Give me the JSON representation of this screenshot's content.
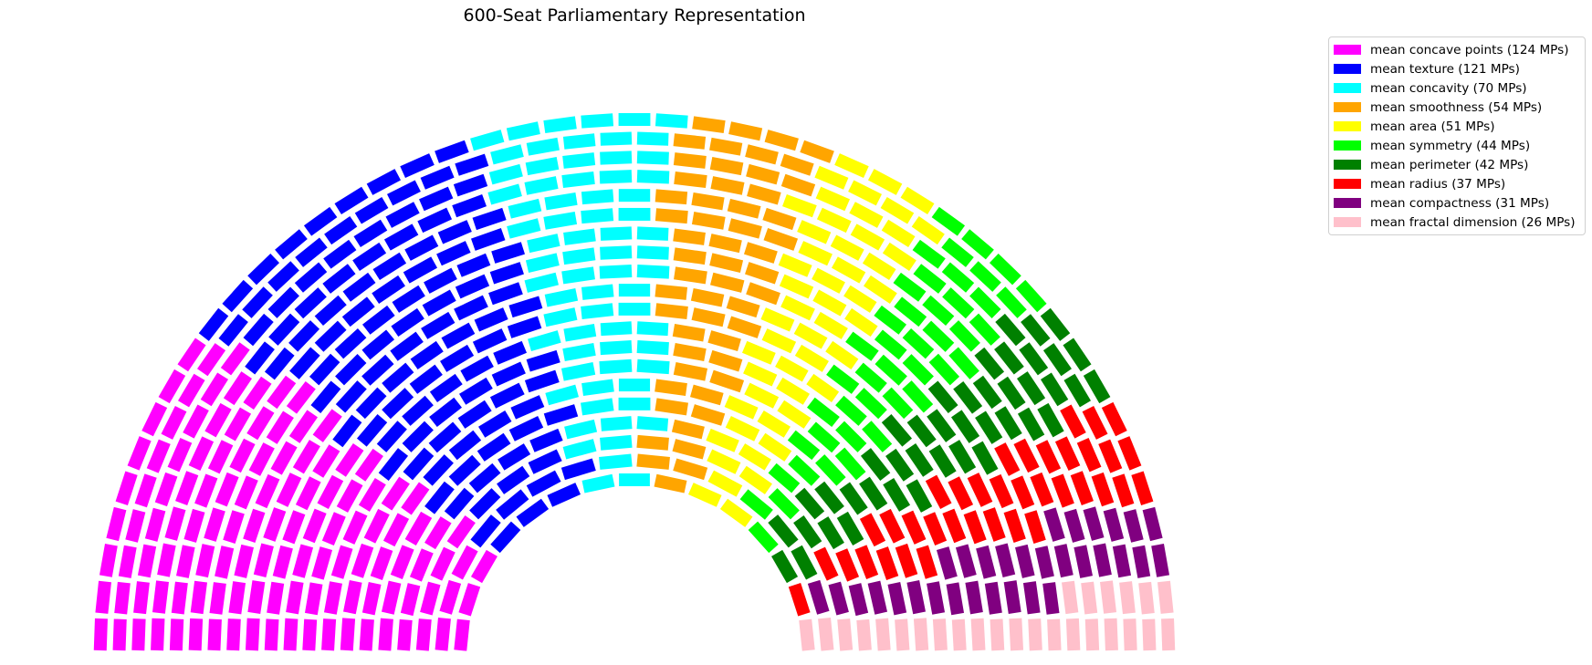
{
  "chart_data": {
    "type": "parliament",
    "title": "600-Seat Parliamentary Representation",
    "total_seats": 600,
    "rows": 20,
    "legend_position": "top-right",
    "series": [
      {
        "name": "mean concave points",
        "seats": 124,
        "color": "#ff00ff",
        "label": "mean concave points (124 MPs)"
      },
      {
        "name": "mean texture",
        "seats": 121,
        "color": "#0000ff",
        "label": "mean texture (121 MPs)"
      },
      {
        "name": "mean concavity",
        "seats": 70,
        "color": "#00ffff",
        "label": "mean concavity (70 MPs)"
      },
      {
        "name": "mean smoothness",
        "seats": 54,
        "color": "#ffa500",
        "label": "mean smoothness (54 MPs)"
      },
      {
        "name": "mean area",
        "seats": 51,
        "color": "#ffff00",
        "label": "mean area (51 MPs)"
      },
      {
        "name": "mean symmetry",
        "seats": 44,
        "color": "#00ff00",
        "label": "mean symmetry (44 MPs)"
      },
      {
        "name": "mean perimeter",
        "seats": 42,
        "color": "#008000",
        "label": "mean perimeter (42 MPs)"
      },
      {
        "name": "mean radius",
        "seats": 37,
        "color": "#ff0000",
        "label": "mean radius (37 MPs)"
      },
      {
        "name": "mean compactness",
        "seats": 31,
        "color": "#800080",
        "label": "mean compactness (31 MPs)"
      },
      {
        "name": "mean fractal dimension",
        "seats": 26,
        "color": "#ffc0cb",
        "label": "mean fractal dimension (26 MPs)"
      }
    ]
  }
}
